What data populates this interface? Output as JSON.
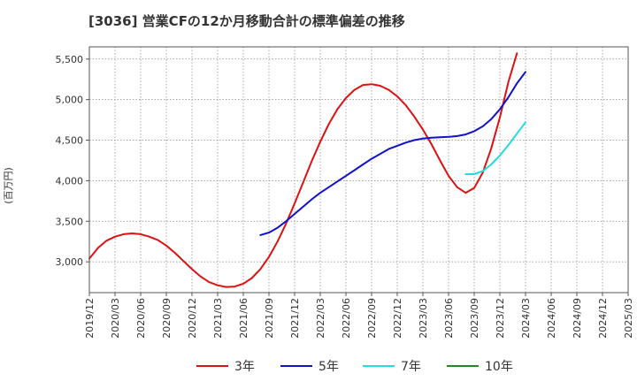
{
  "chart_data": {
    "type": "line",
    "title": "[3036]  営業CFの12か月移動合計の標準偏差の推移",
    "ylabel": "(百万円)",
    "xlabel": "",
    "x_ticks": [
      "2019/12",
      "2020/03",
      "2020/06",
      "2020/09",
      "2020/12",
      "2021/03",
      "2021/06",
      "2021/09",
      "2021/12",
      "2022/03",
      "2022/06",
      "2022/09",
      "2022/12",
      "2023/03",
      "2023/06",
      "2023/09",
      "2023/12",
      "2024/03",
      "2024/06",
      "2024/09",
      "2024/12",
      "2025/03"
    ],
    "y_ticks": [
      3000,
      3500,
      4000,
      4500,
      5000,
      5500
    ],
    "y_tick_labels": [
      "3,000",
      "3,500",
      "4,000",
      "4,500",
      "5,000",
      "5,500"
    ],
    "ylim": [
      2620,
      5650
    ],
    "xlim": [
      "2019/12",
      "2025/03"
    ],
    "grid": true,
    "legend_position": "bottom",
    "series": [
      {
        "name": "3年",
        "color": "#dd1111",
        "points": [
          [
            "2019/12",
            3040
          ],
          [
            "2020/01",
            3170
          ],
          [
            "2020/02",
            3260
          ],
          [
            "2020/03",
            3310
          ],
          [
            "2020/04",
            3340
          ],
          [
            "2020/05",
            3350
          ],
          [
            "2020/06",
            3340
          ],
          [
            "2020/07",
            3310
          ],
          [
            "2020/08",
            3270
          ],
          [
            "2020/09",
            3200
          ],
          [
            "2020/10",
            3110
          ],
          [
            "2020/11",
            3010
          ],
          [
            "2020/12",
            2910
          ],
          [
            "2021/01",
            2820
          ],
          [
            "2021/02",
            2750
          ],
          [
            "2021/03",
            2710
          ],
          [
            "2021/04",
            2690
          ],
          [
            "2021/05",
            2695
          ],
          [
            "2021/06",
            2730
          ],
          [
            "2021/07",
            2800
          ],
          [
            "2021/08",
            2910
          ],
          [
            "2021/09",
            3060
          ],
          [
            "2021/10",
            3250
          ],
          [
            "2021/11",
            3470
          ],
          [
            "2021/12",
            3720
          ],
          [
            "2022/01",
            3980
          ],
          [
            "2022/02",
            4240
          ],
          [
            "2022/03",
            4480
          ],
          [
            "2022/04",
            4700
          ],
          [
            "2022/05",
            4880
          ],
          [
            "2022/06",
            5020
          ],
          [
            "2022/07",
            5120
          ],
          [
            "2022/08",
            5180
          ],
          [
            "2022/09",
            5190
          ],
          [
            "2022/10",
            5170
          ],
          [
            "2022/11",
            5120
          ],
          [
            "2022/12",
            5040
          ],
          [
            "2023/01",
            4930
          ],
          [
            "2023/02",
            4790
          ],
          [
            "2023/03",
            4630
          ],
          [
            "2023/04",
            4450
          ],
          [
            "2023/05",
            4250
          ],
          [
            "2023/06",
            4060
          ],
          [
            "2023/07",
            3920
          ],
          [
            "2023/08",
            3850
          ],
          [
            "2023/09",
            3910
          ],
          [
            "2023/10",
            4100
          ],
          [
            "2023/11",
            4400
          ],
          [
            "2023/12",
            4780
          ],
          [
            "2024/01",
            5220
          ],
          [
            "2024/02",
            5570
          ]
        ]
      },
      {
        "name": "5年",
        "color": "#1111cc",
        "points": [
          [
            "2021/08",
            3330
          ],
          [
            "2021/09",
            3360
          ],
          [
            "2021/10",
            3420
          ],
          [
            "2021/11",
            3500
          ],
          [
            "2021/12",
            3590
          ],
          [
            "2022/01",
            3680
          ],
          [
            "2022/02",
            3770
          ],
          [
            "2022/03",
            3850
          ],
          [
            "2022/04",
            3920
          ],
          [
            "2022/05",
            3990
          ],
          [
            "2022/06",
            4060
          ],
          [
            "2022/07",
            4130
          ],
          [
            "2022/08",
            4200
          ],
          [
            "2022/09",
            4270
          ],
          [
            "2022/10",
            4330
          ],
          [
            "2022/11",
            4390
          ],
          [
            "2022/12",
            4430
          ],
          [
            "2023/01",
            4470
          ],
          [
            "2023/02",
            4500
          ],
          [
            "2023/03",
            4520
          ],
          [
            "2023/04",
            4530
          ],
          [
            "2023/05",
            4535
          ],
          [
            "2023/06",
            4540
          ],
          [
            "2023/07",
            4550
          ],
          [
            "2023/08",
            4570
          ],
          [
            "2023/09",
            4610
          ],
          [
            "2023/10",
            4670
          ],
          [
            "2023/11",
            4760
          ],
          [
            "2023/12",
            4880
          ],
          [
            "2024/01",
            5030
          ],
          [
            "2024/02",
            5200
          ],
          [
            "2024/03",
            5340
          ]
        ]
      },
      {
        "name": "7年",
        "color": "#22dddd",
        "points": [
          [
            "2023/08",
            4080
          ],
          [
            "2023/09",
            4080
          ],
          [
            "2023/10",
            4120
          ],
          [
            "2023/11",
            4200
          ],
          [
            "2023/12",
            4310
          ],
          [
            "2024/01",
            4440
          ],
          [
            "2024/02",
            4580
          ],
          [
            "2024/03",
            4720
          ]
        ]
      },
      {
        "name": "10年",
        "color": "#228822",
        "points": []
      }
    ]
  }
}
